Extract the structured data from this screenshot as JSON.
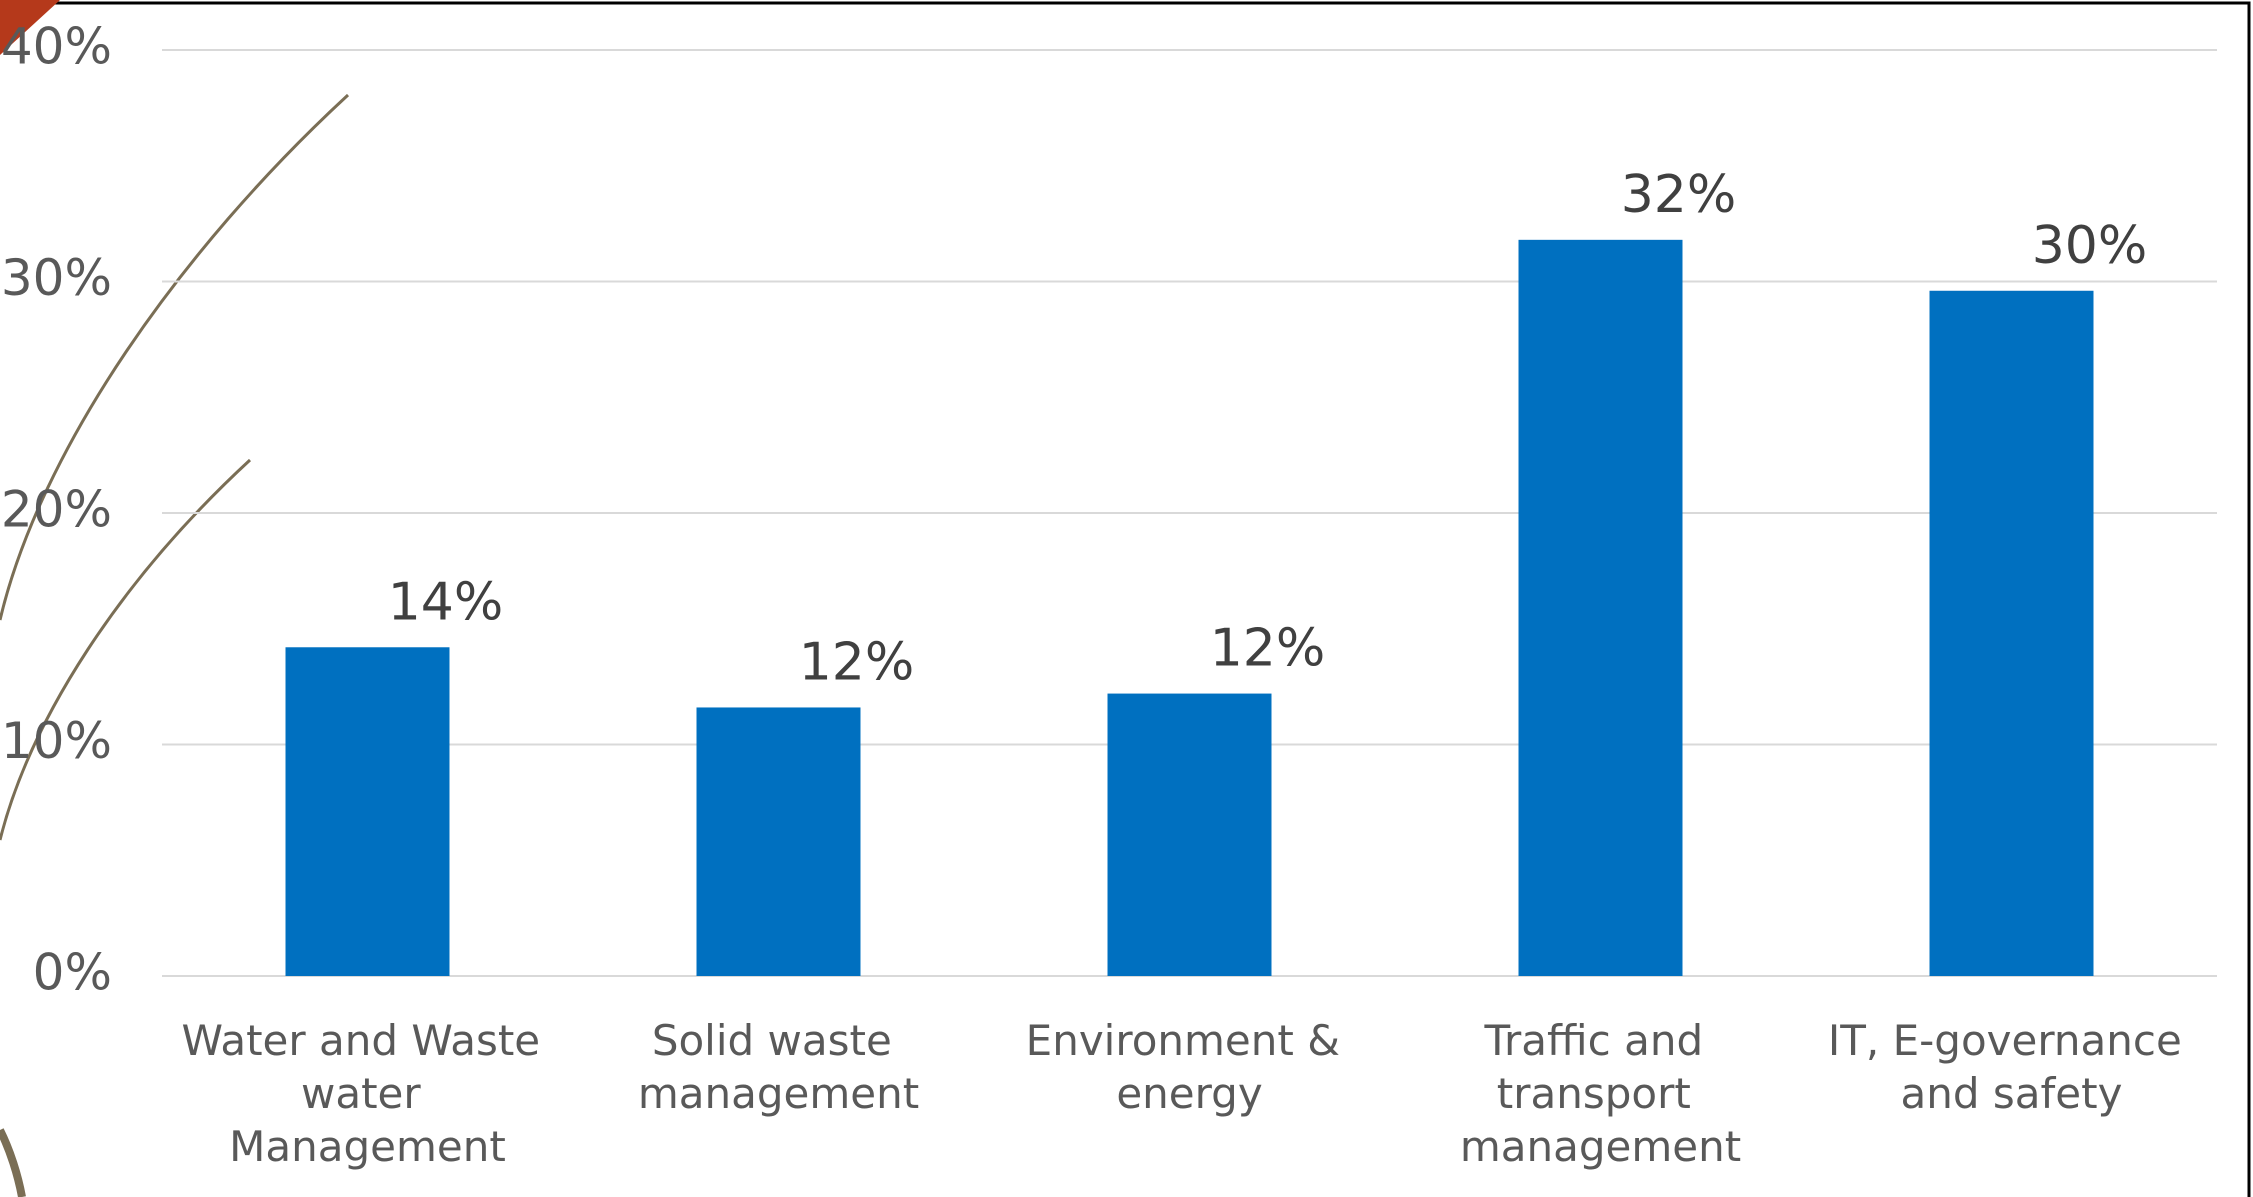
{
  "chart_data": {
    "type": "bar",
    "categories": [
      "Water and Waste water Management",
      "Solid waste management",
      "Environment & energy",
      "Traffic and transport management",
      "IT, E-governance and safety"
    ],
    "values": [
      14.2,
      11.6,
      12.2,
      31.8,
      29.6
    ],
    "value_labels": [
      "14%",
      "12%",
      "12%",
      "32%",
      "30%"
    ],
    "color": "#0070c0",
    "ylim": [
      0,
      40
    ],
    "yticks": [
      {
        "value": 0,
        "label": "0%"
      },
      {
        "value": 10,
        "label": "10%"
      },
      {
        "value": 20,
        "label": "20%"
      },
      {
        "value": 30,
        "label": "30%"
      },
      {
        "value": 40,
        "label": "40%"
      }
    ],
    "grid": true
  }
}
